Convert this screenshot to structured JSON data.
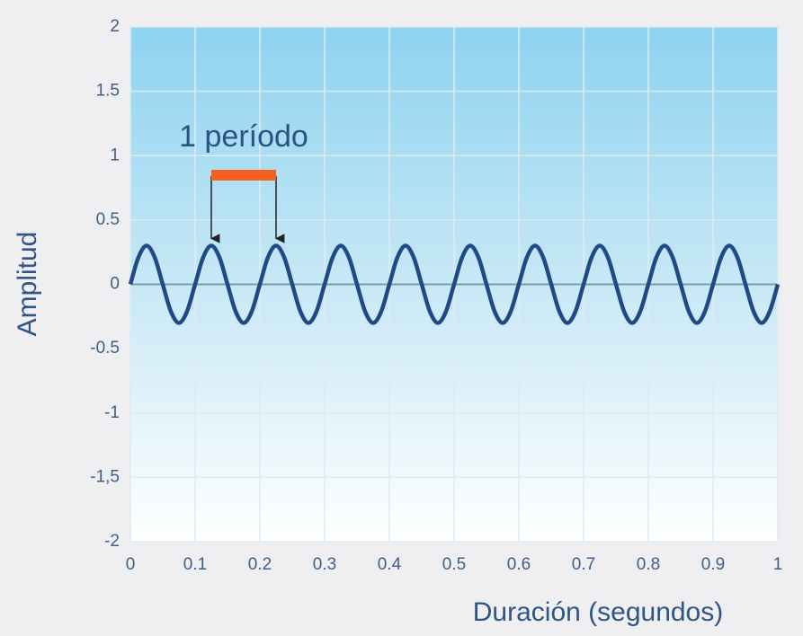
{
  "chart_data": {
    "type": "line",
    "annotation": "1 período",
    "xlabel": "Duración (segundos)",
    "ylabel": "Amplitud",
    "x": [
      0,
      0.0125,
      0.025,
      0.0375,
      0.05,
      0.0625,
      0.075,
      0.0875,
      0.1,
      0.1125,
      0.125,
      0.1375,
      0.15,
      0.1625,
      0.175,
      0.1875,
      0.2,
      0.2125,
      0.225,
      0.2375,
      0.25,
      0.2625,
      0.275,
      0.2875,
      0.3,
      0.3125,
      0.325,
      0.3375,
      0.35,
      0.3625,
      0.375,
      0.3875,
      0.4,
      0.4125,
      0.425,
      0.4375,
      0.45,
      0.4625,
      0.475,
      0.4875,
      0.5,
      0.5125,
      0.525,
      0.5375,
      0.55,
      0.5625,
      0.575,
      0.5875,
      0.6,
      0.6125,
      0.625,
      0.6375,
      0.65,
      0.6625,
      0.675,
      0.6875,
      0.7,
      0.7125,
      0.725,
      0.7375,
      0.75,
      0.7625,
      0.775,
      0.7875,
      0.8,
      0.8125,
      0.825,
      0.8375,
      0.85,
      0.8625,
      0.875,
      0.8875,
      0.9,
      0.9125,
      0.925,
      0.9375,
      0.95,
      0.9625,
      0.975,
      0.9875,
      1
    ],
    "series": [
      {
        "color": "#1f4a86",
        "values": [
          0,
          0.21,
          0.3,
          0.21,
          0,
          -0.21,
          -0.3,
          -0.21,
          0,
          0.21,
          0.3,
          0.21,
          0,
          -0.21,
          -0.3,
          -0.21,
          0,
          0.21,
          0.3,
          0.21,
          0,
          -0.21,
          -0.3,
          -0.21,
          0,
          0.21,
          0.3,
          0.21,
          0,
          -0.21,
          -0.3,
          -0.21,
          0,
          0.21,
          0.3,
          0.21,
          0,
          -0.21,
          -0.3,
          -0.21,
          0,
          0.21,
          0.3,
          0.21,
          0,
          -0.21,
          -0.3,
          -0.21,
          0,
          0.21,
          0.3,
          0.21,
          0,
          -0.21,
          -0.3,
          -0.21,
          0,
          0.21,
          0.3,
          0.21,
          0,
          -0.21,
          -0.3,
          -0.21,
          0,
          0.21,
          0.3,
          0.21,
          0,
          -0.21,
          -0.3,
          -0.21,
          0,
          0.21,
          0.3,
          0.21,
          0,
          -0.21,
          -0.3,
          -0.21,
          0
        ]
      }
    ],
    "xlim": [
      0,
      1
    ],
    "xticks": [
      0,
      0.1,
      0.2,
      0.3,
      0.4,
      0.5,
      0.6,
      0.7,
      0.8,
      0.9,
      1
    ],
    "ylim": [
      -2,
      2
    ],
    "yticks": [
      -2,
      {
        "value": -1.5,
        "label": "-1,5"
      },
      -1,
      -0.5,
      0,
      0.5,
      1,
      1.5,
      2
    ],
    "grid": true,
    "bracket_color": "#f4601e"
  }
}
